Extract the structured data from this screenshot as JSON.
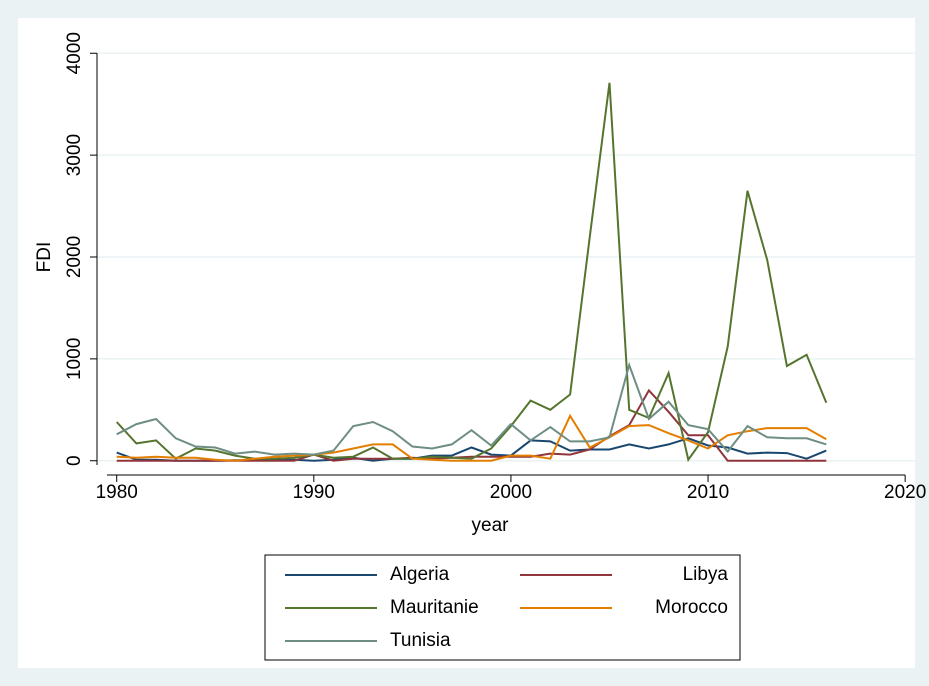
{
  "chart_data": {
    "type": "line",
    "x_label": "year",
    "y_label": "FDI",
    "x": [
      1980,
      1981,
      1982,
      1983,
      1984,
      1985,
      1986,
      1987,
      1988,
      1989,
      1990,
      1991,
      1992,
      1993,
      1994,
      1995,
      1996,
      1997,
      1998,
      1999,
      2000,
      2001,
      2002,
      2003,
      2004,
      2005,
      2006,
      2007,
      2008,
      2009,
      2010,
      2011,
      2012,
      2013,
      2014,
      2015,
      2016
    ],
    "series": [
      {
        "name": "Algeria",
        "color": "#1a476f",
        "values": [
          80,
          10,
          10,
          0,
          0,
          0,
          5,
          5,
          10,
          10,
          0,
          10,
          30,
          0,
          20,
          20,
          50,
          50,
          130,
          60,
          50,
          200,
          190,
          100,
          110,
          110,
          160,
          120,
          160,
          220,
          150,
          130,
          70,
          80,
          75,
          20,
          100
        ]
      },
      {
        "name": "Libya",
        "color": "#90353b",
        "values": [
          0,
          0,
          0,
          0,
          0,
          0,
          0,
          0,
          0,
          0,
          60,
          0,
          20,
          20,
          20,
          30,
          20,
          30,
          40,
          40,
          40,
          40,
          70,
          60,
          110,
          240,
          350,
          690,
          480,
          250,
          250,
          0,
          0,
          0,
          0,
          0,
          0
        ]
      },
      {
        "name": "Mauritanie",
        "color": "#55752f",
        "values": [
          380,
          170,
          200,
          20,
          120,
          100,
          50,
          20,
          20,
          30,
          60,
          30,
          40,
          130,
          20,
          20,
          40,
          30,
          20,
          120,
          340,
          590,
          500,
          650,
          2200,
          3710,
          500,
          420,
          860,
          10,
          280,
          1120,
          2650,
          1970,
          930,
          1040,
          570
        ]
      },
      {
        "name": "Morocco",
        "color": "#e37e00",
        "values": [
          40,
          30,
          40,
          30,
          30,
          10,
          0,
          20,
          40,
          50,
          60,
          80,
          120,
          160,
          160,
          20,
          10,
          0,
          0,
          0,
          50,
          50,
          20,
          440,
          130,
          230,
          340,
          350,
          270,
          200,
          120,
          250,
          290,
          320,
          320,
          320,
          210
        ]
      },
      {
        "name": "Tunisia",
        "color": "#6e8e84",
        "values": [
          260,
          360,
          410,
          220,
          140,
          130,
          70,
          90,
          60,
          70,
          60,
          100,
          340,
          380,
          290,
          140,
          120,
          160,
          300,
          150,
          360,
          200,
          330,
          190,
          190,
          230,
          940,
          410,
          580,
          350,
          310,
          90,
          340,
          230,
          220,
          220,
          160
        ]
      }
    ],
    "xlim": [
      1979,
      2020.5
    ],
    "xticks": [
      1980,
      1990,
      2000,
      2010,
      2020
    ],
    "ylim": [
      -140,
      4130
    ],
    "yticks": [
      0,
      1000,
      2000,
      3000,
      4000
    ],
    "grid": true,
    "legend_position": "bottom",
    "legend_columns": 2
  }
}
